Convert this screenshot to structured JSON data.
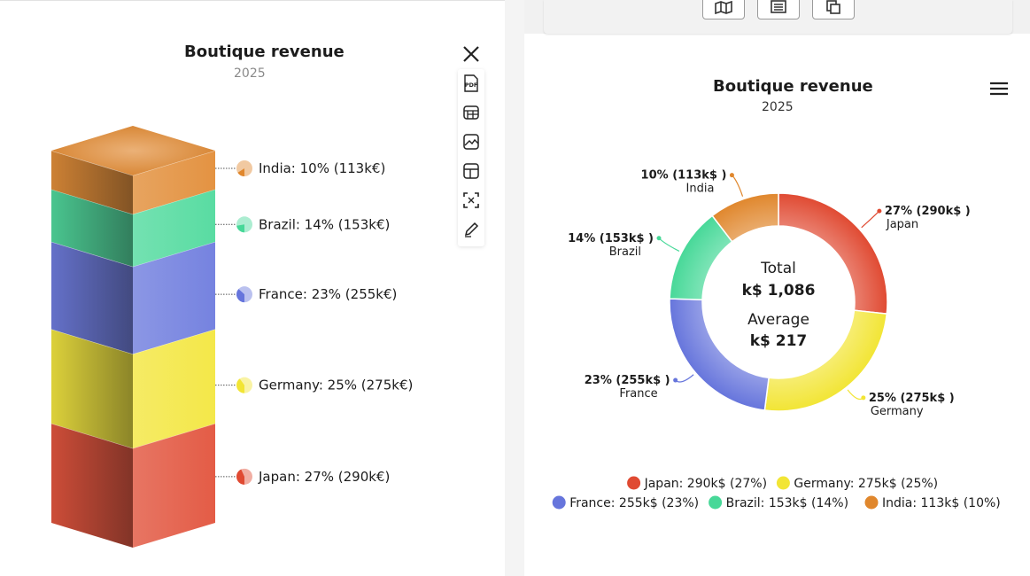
{
  "left_chart": {
    "title": "Boutique revenue",
    "subtitle": "2025",
    "menu": {
      "close_icon": "close-icon",
      "items": [
        {
          "icon": "pdf-icon",
          "label": "PDF"
        },
        {
          "icon": "table-icon"
        },
        {
          "icon": "image-icon"
        },
        {
          "icon": "layout-icon"
        },
        {
          "icon": "fullscreen-icon"
        },
        {
          "icon": "pencil-icon"
        }
      ]
    }
  },
  "right_chart": {
    "title": "Boutique revenue",
    "subtitle": "2025",
    "center": {
      "total_label": "Total",
      "total_value": "k$ 1,086",
      "average_label": "Average",
      "average_value": "k$ 217"
    },
    "menu_icon": "hamburger-icon"
  },
  "toolbar": {
    "buttons": [
      {
        "icon": "map-icon"
      },
      {
        "icon": "list-icon"
      },
      {
        "icon": "copy-icon"
      }
    ]
  },
  "chart_data": [
    {
      "type": "3d-stacked-column",
      "title": "Boutique revenue",
      "subtitle": "2025",
      "series": [
        {
          "name": "Japan",
          "value": 290,
          "percent": 27,
          "color": "#e04a32",
          "label": "Japan: 27% (290k€)"
        },
        {
          "name": "Germany",
          "value": 275,
          "percent": 25,
          "color": "#f2e535",
          "label": "Germany: 25% (275k€)"
        },
        {
          "name": "France",
          "value": 255,
          "percent": 23,
          "color": "#6675dc",
          "label": "France: 23% (255k€)"
        },
        {
          "name": "Brazil",
          "value": 153,
          "percent": 14,
          "color": "#47d898",
          "label": "Brazil: 14% (153k€)"
        },
        {
          "name": "India",
          "value": 113,
          "percent": 10,
          "color": "#e0872d",
          "label": "India: 10% (113k€)"
        }
      ]
    },
    {
      "type": "pie",
      "variant": "donut",
      "title": "Boutique revenue",
      "subtitle": "2025",
      "series": [
        {
          "name": "Japan",
          "value": 290,
          "percent": 27,
          "color": "#e04a32",
          "data_label": "27% (290k$ )",
          "legend": "Japan: 290k$ (27%)"
        },
        {
          "name": "Germany",
          "value": 275,
          "percent": 25,
          "color": "#f2e535",
          "data_label": "25% (275k$ )",
          "legend": "Germany: 275k$ (25%)"
        },
        {
          "name": "France",
          "value": 255,
          "percent": 23,
          "color": "#6675dc",
          "data_label": "23% (255k$ )",
          "legend": "France: 255k$ (23%)"
        },
        {
          "name": "Brazil",
          "value": 153,
          "percent": 14,
          "color": "#47d898",
          "data_label": "14% (153k$ )",
          "legend": "Brazil: 153k$ (14%)"
        },
        {
          "name": "India",
          "value": 113,
          "percent": 10,
          "color": "#e0872d",
          "data_label": "10% (113k$ )",
          "legend": "India: 113k$ (10%)"
        }
      ],
      "legend_position": "bottom"
    }
  ]
}
